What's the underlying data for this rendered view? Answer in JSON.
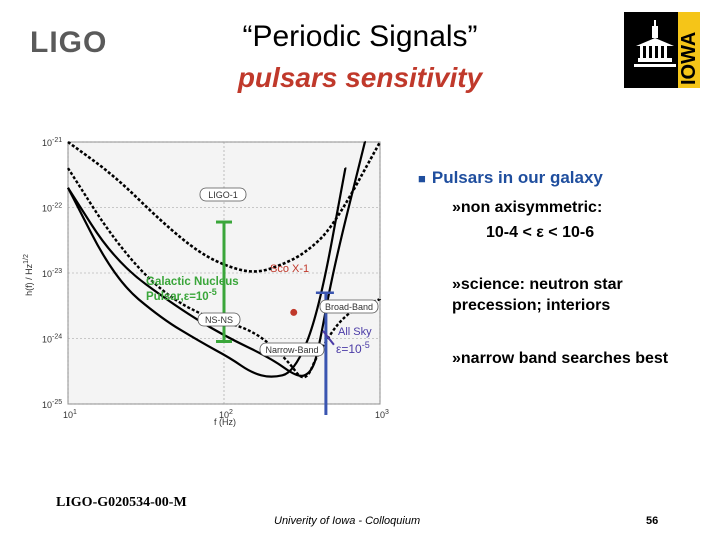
{
  "header": {
    "logo_text": "LIGO",
    "title": "“Periodic Signals”",
    "subtitle": "pulsars sensitivity"
  },
  "bullets": {
    "main": "Pulsars in our galaxy",
    "sub1_line1": "»non axisymmetric:",
    "sub1_line2": "10-4 < ε < 10-6",
    "sub2": "»science: neutron star precession; interiors",
    "sub3": "»narrow band searches best"
  },
  "footer": {
    "doc_id": "LIGO-G020534-00-M",
    "center": "Univerity of Iowa - Colloquium",
    "page": "56"
  },
  "iowa_logo": {
    "text": "IOWA",
    "icon": "iowa-capitol-icon"
  },
  "chart_data": {
    "type": "line",
    "xscale": "log",
    "yscale": "log",
    "xlim": [
      10,
      1000
    ],
    "ylim": [
      1e-25,
      1e-21
    ],
    "x_tick_labels": [
      "10",
      "10",
      "10"
    ],
    "x_tick_exponents": [
      "1",
      "2",
      "3"
    ],
    "y_tick_labels": [
      "10",
      "10",
      "10",
      "10",
      "10"
    ],
    "y_tick_exponents": [
      "-21",
      "-22",
      "-23",
      "-24",
      "-25"
    ],
    "xlabel": "f (Hz)",
    "ylabel": "h(f) / Hz",
    "ylabel_exp": "1/2",
    "curve_labels": [
      "LIGO-1",
      "NS-NS",
      "Broad-Band",
      "Narrow-Band"
    ],
    "series": [
      {
        "name": "LIGO-1",
        "x": [
          10,
          20,
          40,
          70,
          110,
          160,
          230,
          330,
          500,
          1000
        ],
        "y": [
          1e-21,
          3e-22,
          6e-23,
          2e-23,
          1.2e-23,
          1e-23,
          1.3e-23,
          2e-23,
          5e-23,
          1e-21
        ]
      },
      {
        "name": "Broad-Band",
        "x": [
          10,
          20,
          40,
          70,
          110,
          150,
          200,
          280,
          400,
          600
        ],
        "y": [
          2e-22,
          8e-24,
          2e-24,
          9e-25,
          5e-25,
          3e-25,
          2.5e-25,
          3e-25,
          2.2e-24,
          4e-22
        ]
      },
      {
        "name": "Narrow-Band",
        "x": [
          10,
          20,
          50,
          100,
          200,
          300,
          360,
          400,
          500,
          800
        ],
        "y": [
          2e-22,
          1.5e-23,
          3e-24,
          1.1e-24,
          5e-25,
          2.5e-25,
          3e-25,
          6e-25,
          1.1e-23,
          1e-21
        ]
      },
      {
        "name": "NS-NS",
        "x": [
          10,
          20,
          40,
          80,
          150,
          250,
          330,
          400,
          600,
          1000
        ],
        "y": [
          4e-22,
          3e-23,
          5e-24,
          2e-24,
          1.4e-24,
          5e-25,
          2e-25,
          6e-25,
          2.5e-24,
          4e-24
        ]
      }
    ],
    "annotations": {
      "sco_x1": {
        "label": "Sco X-1",
        "x": 280,
        "y": 2.5e-24
      },
      "galactic": {
        "label_line1": "Galactic Nucleus",
        "label_line2_prefix": "Pulsar,",
        "epsilon_symbol": "ε",
        "eq": "=10",
        "exp": "-5"
      },
      "allsky": {
        "label": "All Sky",
        "epsilon_symbol": "ε",
        "eq": "=10",
        "exp": "-5"
      }
    },
    "ranges": {
      "green": {
        "x": 100,
        "y_top": 6e-23,
        "y_bottom": 9e-25
      },
      "blue": {
        "x": 450,
        "y_top": 5e-24,
        "y_bottom": 2e-26
      }
    },
    "colors": {
      "curve": "#000000",
      "green": "#3aa63a",
      "blue": "#3a55b0",
      "red": "#c0392b",
      "purple": "#4a3aa6"
    }
  }
}
